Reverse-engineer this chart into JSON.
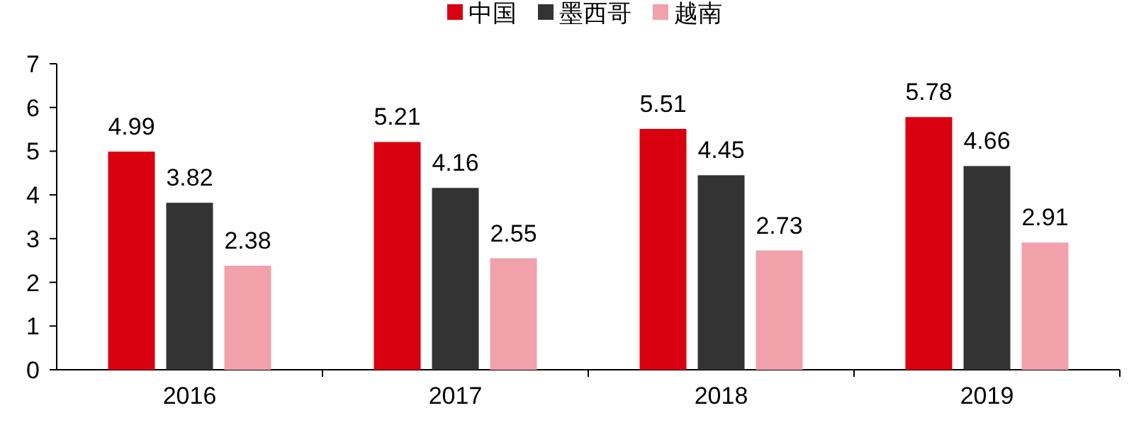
{
  "chart_data": {
    "type": "bar",
    "categories": [
      "2016",
      "2017",
      "2018",
      "2019"
    ],
    "series": [
      {
        "name": "中国",
        "color": "#d9000f",
        "values": [
          4.99,
          5.21,
          5.51,
          5.78
        ]
      },
      {
        "name": "墨西哥",
        "color": "#333333",
        "values": [
          3.82,
          4.16,
          4.45,
          4.66
        ]
      },
      {
        "name": "越南",
        "color": "#f0a1a9",
        "values": [
          2.38,
          2.55,
          2.73,
          2.91
        ]
      }
    ],
    "ylim": [
      0,
      7
    ],
    "yticks": [
      0,
      1,
      2,
      3,
      4,
      5,
      6,
      7
    ],
    "data_labels": true,
    "legend": "top",
    "grid": false
  }
}
